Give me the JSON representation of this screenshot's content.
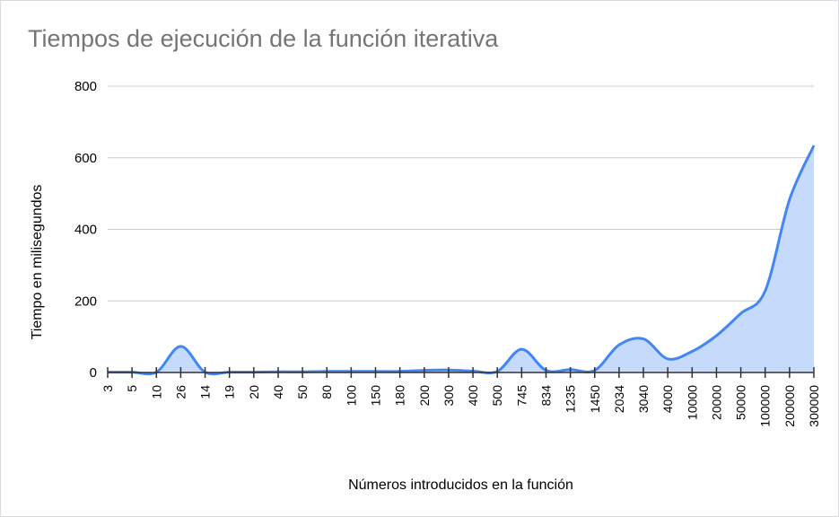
{
  "chart_data": {
    "type": "area",
    "title": "Tiempos de ejecución de la función iterativa",
    "xlabel": "Números introducidos en la función",
    "ylabel": "Tiempo en milisegundos",
    "categories": [
      "3",
      "5",
      "10",
      "26",
      "14",
      "19",
      "20",
      "40",
      "50",
      "80",
      "100",
      "150",
      "180",
      "200",
      "300",
      "400",
      "500",
      "745",
      "834",
      "1235",
      "1450",
      "2034",
      "3040",
      "4000",
      "10000",
      "20000",
      "50000",
      "100000",
      "200000",
      "300000"
    ],
    "series": [
      {
        "values": [
          1,
          1,
          1,
          73,
          1,
          1,
          1,
          2,
          2,
          3,
          3,
          3,
          3,
          6,
          7,
          4,
          3,
          65,
          6,
          8,
          6,
          77,
          94,
          38,
          59,
          103,
          165,
          228,
          483,
          634
        ],
        "color": "#4285f4",
        "fill": "#c6dafc"
      }
    ],
    "ylim": [
      0,
      800
    ],
    "yticks": [
      0,
      200,
      400,
      600,
      800
    ],
    "grid": true,
    "legend": "none"
  }
}
